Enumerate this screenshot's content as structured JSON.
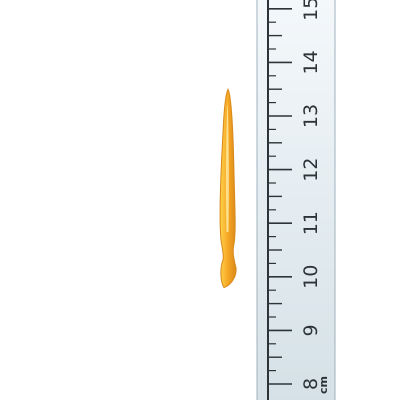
{
  "ruler": {
    "unit_label": "cm",
    "labels": [
      "8",
      "9",
      "10",
      "11",
      "12",
      "13",
      "14",
      "15"
    ],
    "visible_range_cm": [
      7.9,
      15.1
    ],
    "tick_step_cm": 0.25
  },
  "object": {
    "name": "paintbrush-icon",
    "start_cm": 9.8,
    "end_cm": 13.5,
    "color": "#f5a623"
  },
  "colors": {
    "ruler_top": "#f4f8fb",
    "ruler_bottom": "#d5e1e7",
    "ruler_edge": "#9fb2bc",
    "ink": "#2d3438",
    "brush_light": "#ffd24a",
    "brush_mid": "#f5a623",
    "brush_dark": "#d9891a"
  }
}
